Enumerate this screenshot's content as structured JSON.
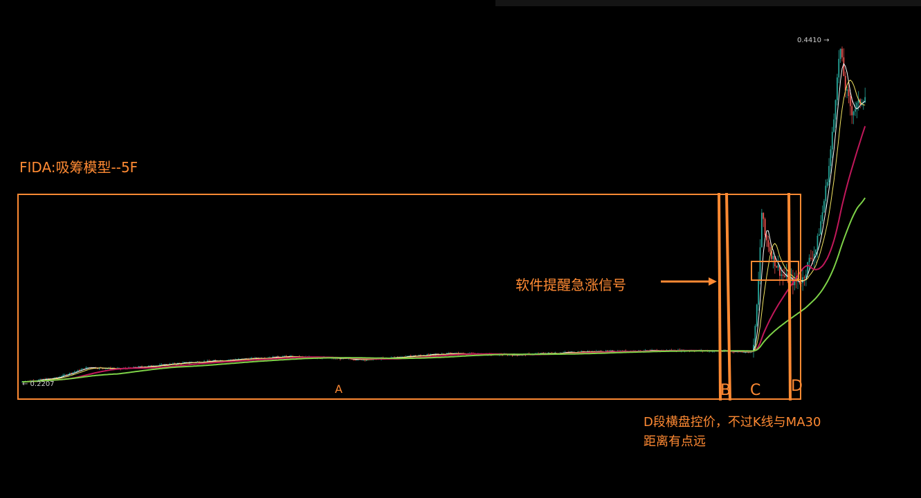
{
  "title": "FIDA:吸筹模型--5F",
  "annotations": {
    "signal": "软件提醒急涨信号",
    "note_line1": "D段横盘控价，不过K线与MA30",
    "note_line2": "距离有点远"
  },
  "colors": {
    "accent": "#ff8a33",
    "up": "#26a69a",
    "down": "#ef5350",
    "ma_fast": "#ffffff",
    "ma_mid": "#f5e663",
    "ma30": "#c2185b",
    "ma_slow": "#7ed348"
  },
  "chart_data": {
    "type": "candlestick",
    "symbol": "FIDA",
    "timeframe": "5F",
    "price_labels": {
      "high": "0.4410 →",
      "low": "← 0.2207"
    },
    "high": 0.441,
    "low": 0.2207,
    "segments": [
      "A",
      "B",
      "C",
      "D"
    ],
    "close_path": [
      [
        0,
        0.2207
      ],
      [
        20,
        0.223
      ],
      [
        40,
        0.23
      ],
      [
        60,
        0.229
      ],
      [
        100,
        0.233
      ],
      [
        160,
        0.237
      ],
      [
        210,
        0.235
      ],
      [
        260,
        0.239
      ],
      [
        300,
        0.238
      ],
      [
        340,
        0.24
      ],
      [
        400,
        0.241
      ],
      [
        445,
        0.24
      ],
      [
        447,
        0.254
      ],
      [
        449,
        0.285
      ],
      [
        451,
        0.33
      ],
      [
        453,
        0.315
      ],
      [
        458,
        0.3
      ],
      [
        463,
        0.29
      ],
      [
        468,
        0.286
      ],
      [
        472,
        0.285
      ],
      [
        476,
        0.287
      ],
      [
        480,
        0.299
      ],
      [
        484,
        0.306
      ],
      [
        488,
        0.33
      ],
      [
        492,
        0.36
      ],
      [
        495,
        0.39
      ],
      [
        497,
        0.42
      ],
      [
        499,
        0.435
      ],
      [
        502,
        0.41
      ],
      [
        506,
        0.395
      ],
      [
        510,
        0.4
      ],
      [
        514,
        0.405
      ]
    ]
  }
}
